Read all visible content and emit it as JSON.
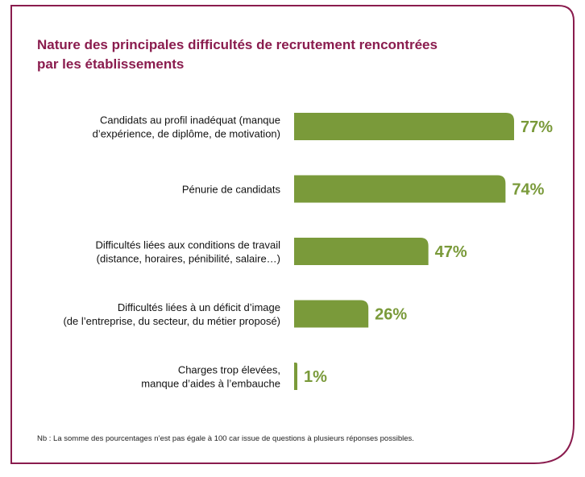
{
  "title_lines": [
    "Nature des principales difficultés de recrutement rencontrées",
    "par les établissements"
  ],
  "note": "Nb : La somme des pourcentages n’est pas égale à 100 car issue de questions à plusieurs réponses possibles.",
  "colors": {
    "bar": "#7a9a3a",
    "label": "#7a9a3a",
    "frame": "#8a1c4e",
    "title": "#8a1c4e"
  },
  "chart_data": {
    "type": "bar",
    "orientation": "horizontal",
    "categories": [
      [
        "Candidats au profil inadéquat (manque",
        "d’expérience, de diplôme, de motivation)"
      ],
      [
        "Pénurie de candidats"
      ],
      [
        "Difficultés liées aux conditions de travail",
        "(distance, horaires, pénibilité, salaire…)"
      ],
      [
        "Difficultés liées à un déficit d’image",
        "(de l’entreprise, du secteur, du métier proposé)"
      ],
      [
        "Charges trop élevées,",
        "manque d’aides à l’embauche"
      ]
    ],
    "values": [
      77,
      74,
      47,
      26,
      1
    ],
    "value_labels": [
      "77%",
      "74%",
      "47%",
      "26%",
      "1%"
    ],
    "xlim": [
      0,
      77
    ]
  }
}
